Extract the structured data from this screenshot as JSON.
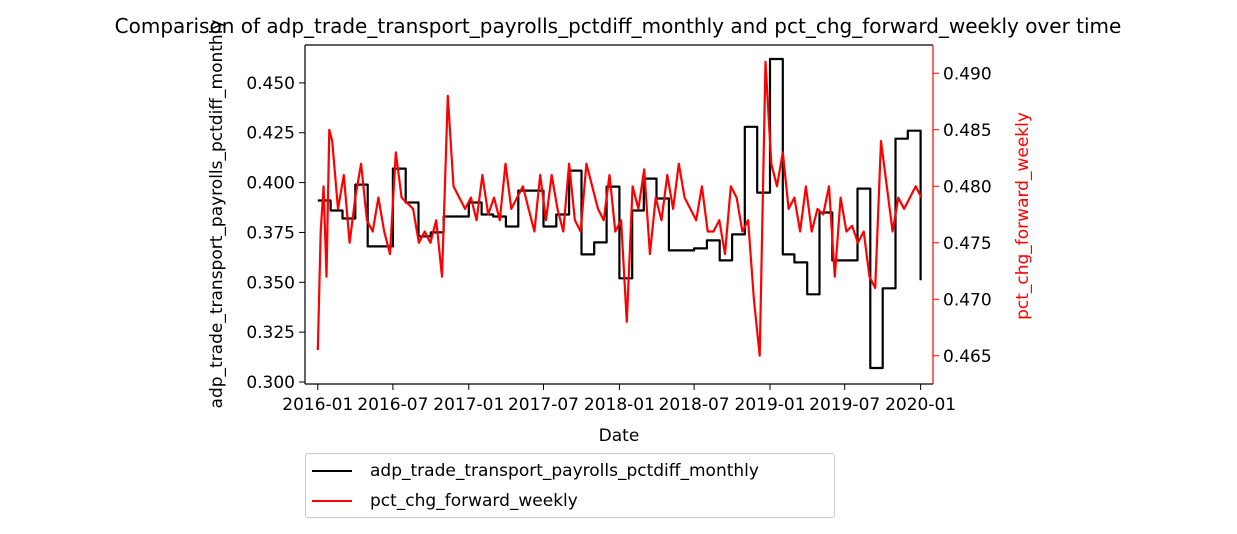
{
  "chart_data": {
    "type": "line",
    "title": "Comparison of adp_trade_transport_payrolls_pctdiff_monthly and pct_chg_forward_weekly over time",
    "xlabel": "Date",
    "ylabel": "adp_trade_transport_payrolls_pctdiff_monthly",
    "y2label": "pct_chg_forward_weekly",
    "xlim": [
      "2015-12-01",
      "2020-01-31"
    ],
    "ylim": [
      0.299,
      0.469
    ],
    "y2lim": [
      0.4625,
      0.4925
    ],
    "x_ticks": [
      "2016-01",
      "2016-07",
      "2017-01",
      "2017-07",
      "2018-01",
      "2018-07",
      "2019-01",
      "2019-07",
      "2020-01"
    ],
    "y_ticks": [
      "0.300",
      "0.325",
      "0.350",
      "0.375",
      "0.400",
      "0.425",
      "0.450"
    ],
    "y2_ticks": [
      "0.465",
      "0.470",
      "0.475",
      "0.480",
      "0.485",
      "0.490"
    ],
    "legend_position": "below",
    "grid": false,
    "series": [
      {
        "name": "adp_trade_transport_payrolls_pctdiff_monthly",
        "axis": "left",
        "color": "#000000",
        "step": true,
        "x": [
          "2016-01",
          "2016-02",
          "2016-03",
          "2016-04",
          "2016-05",
          "2016-06",
          "2016-07",
          "2016-08",
          "2016-09",
          "2016-10",
          "2016-11",
          "2016-12",
          "2017-01",
          "2017-02",
          "2017-03",
          "2017-04",
          "2017-05",
          "2017-06",
          "2017-07",
          "2017-08",
          "2017-09",
          "2017-10",
          "2017-11",
          "2017-12",
          "2018-01",
          "2018-02",
          "2018-03",
          "2018-04",
          "2018-05",
          "2018-06",
          "2018-07",
          "2018-08",
          "2018-09",
          "2018-10",
          "2018-11",
          "2018-12",
          "2019-01",
          "2019-02",
          "2019-03",
          "2019-04",
          "2019-05",
          "2019-06",
          "2019-07",
          "2019-08",
          "2019-09",
          "2019-10",
          "2019-11",
          "2019-12",
          "2020-01"
        ],
        "values": [
          0.391,
          0.386,
          0.382,
          0.399,
          0.368,
          0.368,
          0.407,
          0.39,
          0.373,
          0.375,
          0.383,
          0.383,
          0.39,
          0.384,
          0.383,
          0.378,
          0.396,
          0.396,
          0.378,
          0.384,
          0.406,
          0.364,
          0.37,
          0.398,
          0.352,
          0.386,
          0.402,
          0.392,
          0.366,
          0.366,
          0.367,
          0.371,
          0.361,
          0.374,
          0.428,
          0.395,
          0.462,
          0.364,
          0.36,
          0.344,
          0.385,
          0.361,
          0.361,
          0.397,
          0.307,
          0.347,
          0.422,
          0.426,
          0.351
        ]
      },
      {
        "name": "pct_chg_forward_weekly",
        "axis": "right",
        "color": "#ff0000",
        "step": false,
        "x": [
          "2016-01-01",
          "2016-01-08",
          "2016-01-15",
          "2016-01-22",
          "2016-01-29",
          "2016-02-05",
          "2016-02-19",
          "2016-03-04",
          "2016-03-18",
          "2016-04-01",
          "2016-04-15",
          "2016-04-29",
          "2016-05-13",
          "2016-05-27",
          "2016-06-10",
          "2016-06-24",
          "2016-07-08",
          "2016-07-22",
          "2016-08-05",
          "2016-08-19",
          "2016-09-02",
          "2016-09-16",
          "2016-09-30",
          "2016-10-14",
          "2016-10-28",
          "2016-11-11",
          "2016-11-25",
          "2016-12-09",
          "2016-12-23",
          "2017-01-06",
          "2017-01-20",
          "2017-02-03",
          "2017-02-17",
          "2017-03-03",
          "2017-03-17",
          "2017-03-31",
          "2017-04-14",
          "2017-04-28",
          "2017-05-12",
          "2017-05-26",
          "2017-06-09",
          "2017-06-23",
          "2017-07-07",
          "2017-07-21",
          "2017-08-04",
          "2017-08-18",
          "2017-09-01",
          "2017-09-15",
          "2017-09-29",
          "2017-10-13",
          "2017-10-27",
          "2017-11-10",
          "2017-11-24",
          "2017-12-08",
          "2017-12-22",
          "2018-01-05",
          "2018-01-19",
          "2018-02-02",
          "2018-02-16",
          "2018-03-02",
          "2018-03-16",
          "2018-03-30",
          "2018-04-13",
          "2018-04-27",
          "2018-05-11",
          "2018-05-25",
          "2018-06-08",
          "2018-06-22",
          "2018-07-06",
          "2018-07-20",
          "2018-08-03",
          "2018-08-17",
          "2018-08-31",
          "2018-09-14",
          "2018-09-28",
          "2018-10-12",
          "2018-10-26",
          "2018-11-09",
          "2018-11-23",
          "2018-12-07",
          "2018-12-21",
          "2019-01-04",
          "2019-01-18",
          "2019-02-01",
          "2019-02-15",
          "2019-03-01",
          "2019-03-15",
          "2019-03-29",
          "2019-04-12",
          "2019-04-26",
          "2019-05-10",
          "2019-05-24",
          "2019-06-07",
          "2019-06-21",
          "2019-07-05",
          "2019-07-19",
          "2019-08-02",
          "2019-08-16",
          "2019-08-30",
          "2019-09-13",
          "2019-09-27",
          "2019-10-11",
          "2019-10-25",
          "2019-11-08",
          "2019-11-22",
          "2019-12-06",
          "2019-12-20",
          "2020-01-03"
        ],
        "values": [
          0.4655,
          0.476,
          0.48,
          0.472,
          0.485,
          0.484,
          0.478,
          0.481,
          0.475,
          0.479,
          0.482,
          0.477,
          0.476,
          0.479,
          0.476,
          0.474,
          0.483,
          0.479,
          0.4785,
          0.478,
          0.475,
          0.476,
          0.475,
          0.477,
          0.472,
          0.488,
          0.48,
          0.479,
          0.478,
          0.479,
          0.477,
          0.481,
          0.4775,
          0.479,
          0.477,
          0.482,
          0.478,
          0.479,
          0.48,
          0.478,
          0.476,
          0.481,
          0.477,
          0.481,
          0.478,
          0.476,
          0.482,
          0.477,
          0.476,
          0.482,
          0.48,
          0.478,
          0.477,
          0.481,
          0.476,
          0.477,
          0.468,
          0.48,
          0.478,
          0.4815,
          0.474,
          0.479,
          0.477,
          0.481,
          0.478,
          0.482,
          0.479,
          0.478,
          0.477,
          0.48,
          0.476,
          0.476,
          0.477,
          0.474,
          0.48,
          0.479,
          0.476,
          0.477,
          0.47,
          0.465,
          0.491,
          0.482,
          0.48,
          0.483,
          0.478,
          0.479,
          0.476,
          0.48,
          0.476,
          0.478,
          0.4775,
          0.48,
          0.472,
          0.479,
          0.476,
          0.4765,
          0.475,
          0.476,
          0.472,
          0.471,
          0.484,
          0.48,
          0.476,
          0.479,
          0.478,
          0.479,
          0.48,
          0.479
        ]
      }
    ]
  }
}
